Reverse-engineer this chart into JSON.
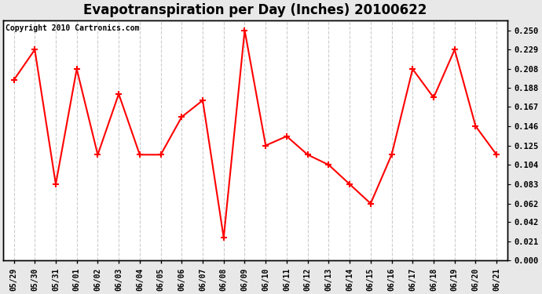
{
  "title": "Evapotranspiration per Day (Inches) 20100622",
  "copyright_text": "Copyright 2010 Cartronics.com",
  "x_labels": [
    "05/29",
    "05/30",
    "05/31",
    "06/01",
    "06/02",
    "06/03",
    "06/04",
    "06/05",
    "06/06",
    "06/07",
    "06/08",
    "06/09",
    "06/10",
    "06/11",
    "06/12",
    "06/13",
    "06/14",
    "06/15",
    "06/16",
    "06/17",
    "06/18",
    "06/19",
    "06/20",
    "06/21"
  ],
  "y_values": [
    0.196,
    0.229,
    0.083,
    0.208,
    0.115,
    0.181,
    0.115,
    0.115,
    0.156,
    0.174,
    0.025,
    0.25,
    0.125,
    0.135,
    0.115,
    0.104,
    0.083,
    0.062,
    0.115,
    0.208,
    0.177,
    0.229,
    0.146,
    0.115
  ],
  "line_color": "#ff0000",
  "marker": "+",
  "marker_size": 6,
  "marker_linewidth": 1.5,
  "line_width": 1.5,
  "ylim": [
    0.0,
    0.2604
  ],
  "yticks": [
    0.0,
    0.021,
    0.042,
    0.062,
    0.083,
    0.104,
    0.125,
    0.146,
    0.167,
    0.188,
    0.208,
    0.229,
    0.25
  ],
  "plot_bg_color": "#ffffff",
  "fig_bg_color": "#e8e8e8",
  "grid_color": "#cccccc",
  "title_fontsize": 12,
  "copyright_fontsize": 7,
  "tick_fontsize": 7.5,
  "xtick_fontsize": 7
}
